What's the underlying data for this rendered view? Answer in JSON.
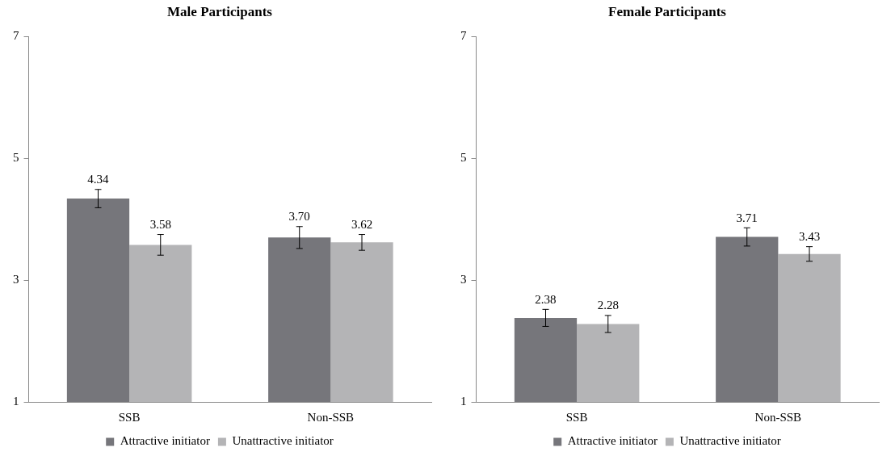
{
  "chart_data": [
    {
      "type": "bar",
      "title": "Male Participants",
      "categories": [
        "SSB",
        "Non-SSB"
      ],
      "ylim": [
        1,
        7
      ],
      "yticks": [
        1,
        3,
        5,
        7
      ],
      "grid": false,
      "legend": "bottom",
      "series": [
        {
          "name": "Attractive initiator",
          "color": "#76767b",
          "values": [
            4.34,
            3.7
          ],
          "value_labels": [
            "4.34",
            "3.70"
          ],
          "errors": [
            0.15,
            0.18
          ]
        },
        {
          "name": "Unattractive initiator",
          "color": "#b4b4b6",
          "values": [
            3.58,
            3.62
          ],
          "value_labels": [
            "3.58",
            "3.62"
          ],
          "errors": [
            0.17,
            0.13
          ]
        }
      ]
    },
    {
      "type": "bar",
      "title": "Female Participants",
      "categories": [
        "SSB",
        "Non-SSB"
      ],
      "ylim": [
        1,
        7
      ],
      "yticks": [
        1,
        3,
        5,
        7
      ],
      "grid": false,
      "legend": "bottom",
      "series": [
        {
          "name": "Attractive initiator",
          "color": "#76767b",
          "values": [
            2.38,
            3.71
          ],
          "value_labels": [
            "2.38",
            "3.71"
          ],
          "errors": [
            0.14,
            0.15
          ]
        },
        {
          "name": "Unattractive initiator",
          "color": "#b4b4b6",
          "values": [
            2.28,
            3.43
          ],
          "value_labels": [
            "2.28",
            "3.43"
          ],
          "errors": [
            0.14,
            0.12
          ]
        }
      ]
    }
  ]
}
